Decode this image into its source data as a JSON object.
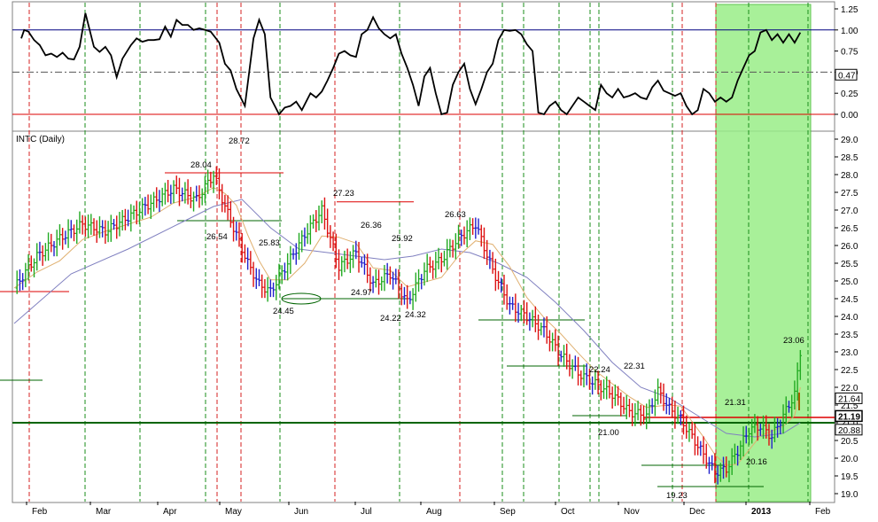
{
  "chart_data": [
    {
      "type": "line",
      "panel": "oscillator",
      "y_ticks": [
        "1.25",
        "1.00",
        "0.75",
        "0.50",
        "0.25",
        "0.00"
      ],
      "ylim": [
        -0.1,
        1.3
      ],
      "reference_lines": [
        1.0,
        0.5,
        0.0
      ],
      "last_value_label": "0.47",
      "last_value": 0.47,
      "series": [
        {
          "x": [
            2.5,
            3.5,
            5,
            7,
            9,
            11,
            13,
            15,
            17,
            19,
            21,
            23,
            25,
            28,
            30,
            32,
            34,
            36,
            38,
            41,
            43,
            45,
            47,
            49,
            51,
            53,
            55,
            57,
            59,
            61,
            63,
            65,
            67,
            69,
            72,
            74,
            76,
            78,
            81,
            84,
            86,
            88,
            90,
            93,
            95,
            97,
            99,
            101,
            104,
            106,
            108,
            110,
            112,
            114,
            116,
            118,
            120,
            122,
            124,
            126,
            128,
            130,
            132,
            134,
            136,
            138,
            140,
            142,
            144,
            146,
            148,
            150,
            152,
            154,
            156,
            158,
            160,
            162,
            164,
            166,
            168,
            170,
            172,
            174,
            176,
            178,
            180,
            182,
            184,
            186,
            188,
            190,
            192,
            194,
            196,
            198,
            200,
            202,
            204,
            206,
            208,
            210,
            212,
            214,
            216,
            218,
            220,
            222,
            224,
            226,
            228,
            230,
            232,
            234,
            236,
            238,
            240,
            242,
            244,
            246,
            248,
            250,
            252,
            254,
            256,
            258,
            260,
            262,
            264,
            266,
            268,
            270,
            272,
            274,
            276
          ],
          "y": [
            0.9,
            1.0,
            0.98,
            0.88,
            0.82,
            0.7,
            0.72,
            0.68,
            0.73,
            0.66,
            0.65,
            0.8,
            1.2,
            0.8,
            0.74,
            0.8,
            0.7,
            0.44,
            0.66,
            0.82,
            0.9,
            0.86,
            0.88,
            0.88,
            0.89,
            1.04,
            0.92,
            1.12,
            1.06,
            1.06,
            1.0,
            1.02,
            1.0,
            0.98,
            0.85,
            0.6,
            0.52,
            0.3,
            0.1,
            0.9,
            1.12,
            0.95,
            0.2,
            0.0,
            0.08,
            0.1,
            0.15,
            0.05,
            0.25,
            0.2,
            0.27,
            0.4,
            0.55,
            0.72,
            0.75,
            0.7,
            0.68,
            0.95,
            1.0,
            1.15,
            1.02,
            0.95,
            0.9,
            0.95,
            0.72,
            0.55,
            0.35,
            0.1,
            0.45,
            0.55,
            0.25,
            0.0,
            0.02,
            0.35,
            0.5,
            0.6,
            0.3,
            0.12,
            0.3,
            0.5,
            0.6,
            0.88,
            1.0,
            0.99,
            1.0,
            0.95,
            0.83,
            0.75,
            0.02,
            0.0,
            0.1,
            0.15,
            0.05,
            0.0,
            0.1,
            0.2,
            0.15,
            0.1,
            0.05,
            0.35,
            0.25,
            0.2,
            0.3,
            0.2,
            0.22,
            0.25,
            0.2,
            0.18,
            0.32,
            0.4,
            0.28,
            0.25,
            0.22,
            0.25,
            0.1,
            0.0,
            0.05,
            0.3,
            0.25,
            0.15,
            0.2,
            0.15,
            0.2,
            0.4,
            0.55,
            0.7,
            0.75,
            0.97,
            1.0,
            0.88,
            0.95,
            0.85,
            0.95,
            0.85,
            0.97
          ]
        }
      ]
    },
    {
      "type": "bar",
      "subtype": "ohlc",
      "title": "INTC (Daily)",
      "x_tick_labels": [
        "Feb",
        "Mar",
        "Apr",
        "May",
        "Jun",
        "Jul",
        "Aug",
        "Sep",
        "Oct",
        "Nov",
        "Dec",
        "2013",
        "Feb"
      ],
      "y_ticks": [
        "29.0",
        "28.5",
        "28.0",
        "27.5",
        "27.0",
        "26.5",
        "26.0",
        "25.5",
        "25.0",
        "24.5",
        "24.0",
        "23.5",
        "23.0",
        "22.5",
        "22.0",
        "21.5",
        "21.0",
        "20.5",
        "20.0",
        "19.5",
        "19.0"
      ],
      "ylim": [
        18.9,
        29.1
      ],
      "price_labels": [
        "28.04",
        "28.72",
        "26.54",
        "27.23",
        "25.83",
        "26.36",
        "25.92",
        "26.63",
        "24.97",
        "24.45",
        "24.22",
        "24.32",
        "22.24",
        "22.31",
        "21.00",
        "21.31",
        "20.16",
        "19.23",
        "23.06"
      ],
      "right_labels": [
        "21.64",
        "21.19",
        "20.88"
      ],
      "right_values": [
        21.64,
        21.19,
        20.88
      ],
      "support_level": 21.0,
      "resistance_level": 21.0,
      "highlight_region_label": "",
      "price_path": {
        "x": [
          0,
          8,
          16,
          24,
          32,
          40,
          48,
          56,
          64,
          70,
          74,
          78,
          82,
          86,
          90,
          96,
          102,
          108,
          114,
          120,
          126,
          132,
          138,
          144,
          150,
          156,
          162,
          168,
          174,
          180,
          186,
          192,
          198,
          204,
          210,
          216,
          222,
          226,
          230,
          234,
          238,
          242,
          246,
          250,
          254,
          258,
          262,
          266,
          270,
          274,
          276
        ],
        "close": [
          24.8,
          25.7,
          26.2,
          26.6,
          26.4,
          26.8,
          27.2,
          27.6,
          27.3,
          28.0,
          27.1,
          26.3,
          25.5,
          24.9,
          24.7,
          25.5,
          26.3,
          27.0,
          25.4,
          25.8,
          24.9,
          25.2,
          24.4,
          25.3,
          25.6,
          26.2,
          26.6,
          25.3,
          24.3,
          24.0,
          23.6,
          22.9,
          22.4,
          22.1,
          21.8,
          21.3,
          21.2,
          21.9,
          21.4,
          21.1,
          20.6,
          20.1,
          19.6,
          19.7,
          20.2,
          20.8,
          20.9,
          20.6,
          21.2,
          21.8,
          23.0
        ]
      },
      "sma_slow": {
        "x": [
          0,
          20,
          40,
          60,
          70,
          80,
          90,
          100,
          110,
          120,
          130,
          140,
          150,
          160,
          170,
          180,
          190,
          200,
          210,
          220,
          230,
          240,
          250,
          260,
          270,
          276
        ],
        "y": [
          23.8,
          25.2,
          25.9,
          26.7,
          27.1,
          27.3,
          26.5,
          25.9,
          25.8,
          25.7,
          25.6,
          25.7,
          25.9,
          25.8,
          25.5,
          25.1,
          24.4,
          23.6,
          22.7,
          22.0,
          21.7,
          21.2,
          20.7,
          20.6,
          20.7,
          21.0
        ]
      }
    }
  ]
}
